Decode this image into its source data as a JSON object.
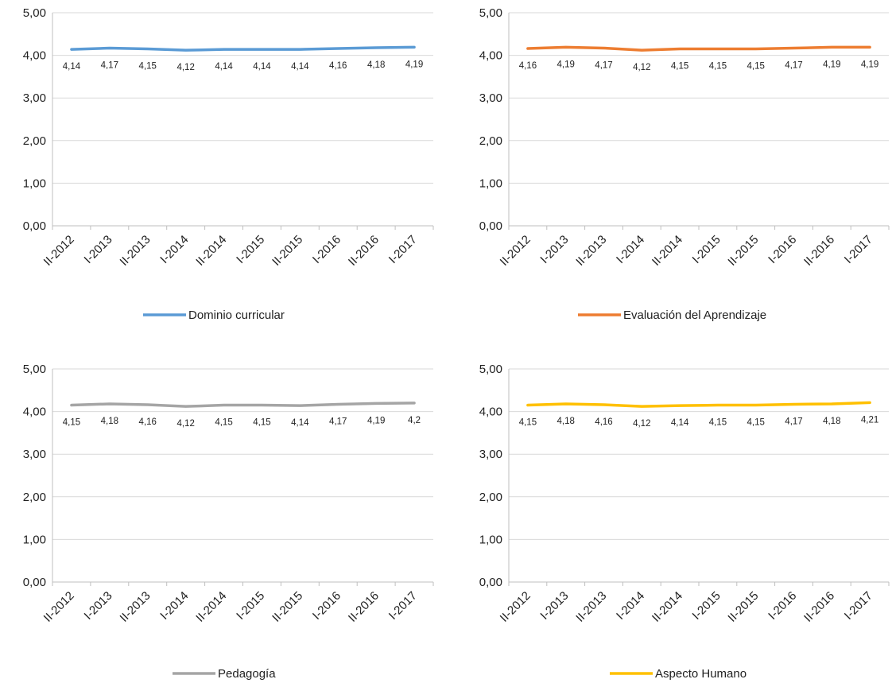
{
  "chart_data": [
    {
      "type": "line",
      "categories": [
        "II-2012",
        "I-2013",
        "II-2013",
        "I-2014",
        "II-2014",
        "I-2015",
        "II-2015",
        "I-2016",
        "II-2016",
        "I-2017"
      ],
      "series": [
        {
          "name": "Dominio curricular",
          "values": [
            4.14,
            4.17,
            4.15,
            4.12,
            4.14,
            4.14,
            4.14,
            4.16,
            4.18,
            4.19
          ],
          "color": "#5B9BD5"
        }
      ],
      "data_labels": [
        "4,14",
        "4,17",
        "4,15",
        "4,12",
        "4,14",
        "4,14",
        "4,14",
        "4,16",
        "4,18",
        "4,19"
      ],
      "y_ticks": [
        "0,00",
        "1,00",
        "2,00",
        "3,00",
        "4,00",
        "5,00"
      ],
      "ylim": [
        0,
        5
      ],
      "grid": true,
      "legend_position": "bottom"
    },
    {
      "type": "line",
      "categories": [
        "II-2012",
        "I-2013",
        "II-2013",
        "I-2014",
        "II-2014",
        "I-2015",
        "II-2015",
        "I-2016",
        "II-2016",
        "I-2017"
      ],
      "series": [
        {
          "name": "Evaluación del Aprendizaje",
          "values": [
            4.16,
            4.19,
            4.17,
            4.12,
            4.15,
            4.15,
            4.15,
            4.17,
            4.19,
            4.19
          ],
          "color": "#ED7D31"
        }
      ],
      "data_labels": [
        "4,16",
        "4,19",
        "4,17",
        "4,12",
        "4,15",
        "4,15",
        "4,15",
        "4,17",
        "4,19",
        "4,19"
      ],
      "y_ticks": [
        "0,00",
        "1,00",
        "2,00",
        "3,00",
        "4,00",
        "5,00"
      ],
      "ylim": [
        0,
        5
      ],
      "grid": true,
      "legend_position": "bottom"
    },
    {
      "type": "line",
      "categories": [
        "II-2012",
        "I-2013",
        "II-2013",
        "I-2014",
        "II-2014",
        "I-2015",
        "II-2015",
        "I-2016",
        "II-2016",
        "I-2017"
      ],
      "series": [
        {
          "name": "Pedagogía",
          "values": [
            4.15,
            4.18,
            4.16,
            4.12,
            4.15,
            4.15,
            4.14,
            4.17,
            4.19,
            4.2
          ],
          "color": "#A5A5A5"
        }
      ],
      "data_labels": [
        "4,15",
        "4,18",
        "4,16",
        "4,12",
        "4,15",
        "4,15",
        "4,14",
        "4,17",
        "4,19",
        "4,2"
      ],
      "y_ticks": [
        "0,00",
        "1,00",
        "2,00",
        "3,00",
        "4,00",
        "5,00"
      ],
      "ylim": [
        0,
        5
      ],
      "grid": true,
      "legend_position": "bottom"
    },
    {
      "type": "line",
      "categories": [
        "II-2012",
        "I-2013",
        "II-2013",
        "I-2014",
        "II-2014",
        "I-2015",
        "II-2015",
        "I-2016",
        "II-2016",
        "I-2017"
      ],
      "series": [
        {
          "name": "Aspecto Humano",
          "values": [
            4.15,
            4.18,
            4.16,
            4.12,
            4.14,
            4.15,
            4.15,
            4.17,
            4.18,
            4.21
          ],
          "color": "#FFC000"
        }
      ],
      "data_labels": [
        "4,15",
        "4,18",
        "4,16",
        "4,12",
        "4,14",
        "4,15",
        "4,15",
        "4,17",
        "4,18",
        "4,21"
      ],
      "y_ticks": [
        "0,00",
        "1,00",
        "2,00",
        "3,00",
        "4,00",
        "5,00"
      ],
      "ylim": [
        0,
        5
      ],
      "grid": true,
      "legend_position": "bottom"
    }
  ]
}
